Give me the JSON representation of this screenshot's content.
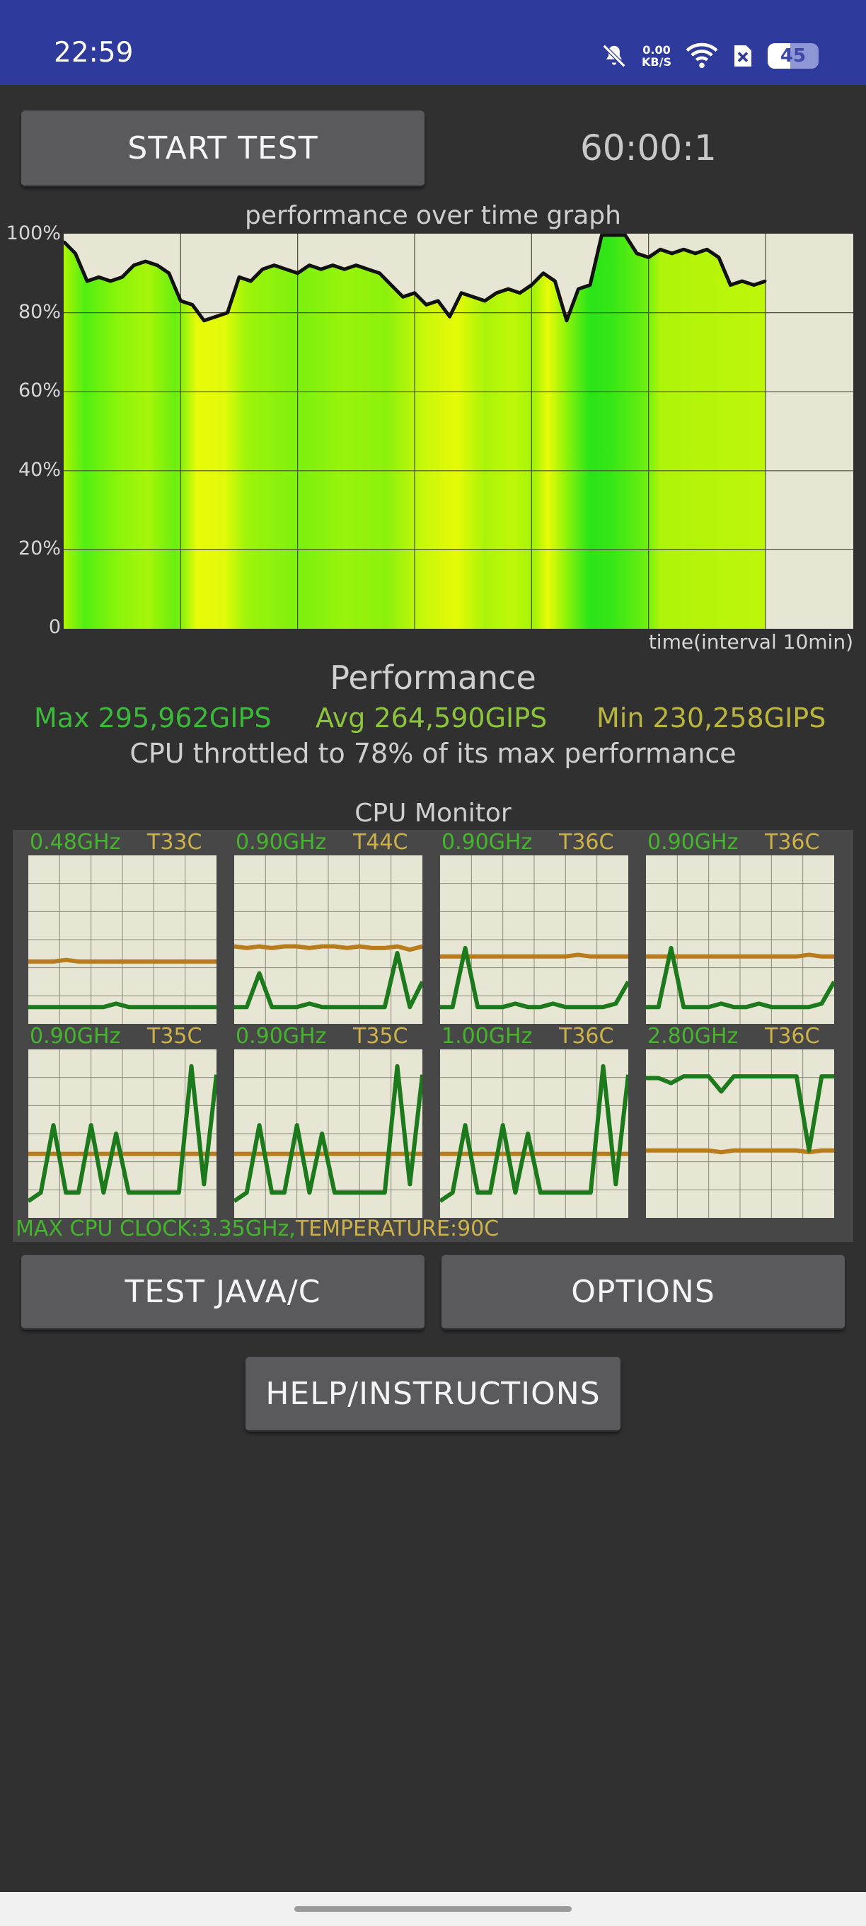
{
  "status_bar": {
    "time": "22:59",
    "net_speed_value": "0.00",
    "net_speed_unit": "KB/S",
    "battery": "45",
    "battery_level": 0.45,
    "icons": [
      "bell-muted-icon",
      "net-speed-icon",
      "wifi-icon",
      "sim-blocked-icon",
      "battery-icon"
    ]
  },
  "controls": {
    "start_label": "START TEST",
    "timer": "60:00:1"
  },
  "graph": {
    "title": "performance over time graph",
    "y_ticks": [
      "100%",
      "80%",
      "60%",
      "40%",
      "20%",
      "0"
    ],
    "x_label": "time(interval 10min)"
  },
  "chart_data": {
    "type": "area",
    "title": "performance over time graph",
    "xlabel": "time(interval 10min)",
    "ylabel": "",
    "ylim": [
      0,
      100
    ],
    "y_ticks": [
      0,
      20,
      40,
      60,
      80,
      100
    ],
    "grid": true,
    "x_range_minutes": [
      0,
      67.5
    ],
    "series": [
      {
        "x": [
          0,
          1,
          2,
          3,
          4,
          5,
          6,
          7,
          8,
          9,
          10,
          11,
          12,
          13,
          14,
          15,
          16,
          17,
          18,
          19,
          20,
          21,
          22,
          23,
          24,
          25,
          26,
          27,
          28,
          29,
          30,
          31,
          32,
          33,
          34,
          35,
          36,
          37,
          38,
          39,
          40,
          41,
          42,
          43,
          44,
          45,
          46,
          47,
          48,
          49,
          50,
          51,
          52,
          53,
          54,
          55,
          56,
          57,
          58,
          59,
          60
        ],
        "values": [
          98,
          95,
          88,
          89,
          88,
          89,
          92,
          93,
          92,
          90,
          83,
          82,
          78,
          79,
          80,
          89,
          88,
          91,
          92,
          91,
          90,
          92,
          91,
          92,
          91,
          92,
          91,
          90,
          87,
          84,
          85,
          82,
          83,
          79,
          85,
          84,
          83,
          85,
          86,
          85,
          87,
          90,
          88,
          78,
          86,
          87,
          101,
          101,
          100,
          95,
          94,
          96,
          95,
          96,
          95,
          96,
          94,
          87,
          88,
          87,
          88
        ]
      }
    ]
  },
  "performance": {
    "title": "Performance",
    "max": "Max 295,962GIPS",
    "avg": "Avg 264,590GIPS",
    "min": "Min 230,258GIPS",
    "throttle": "CPU throttled to 78% of its max performance"
  },
  "cpu_monitor": {
    "title": "CPU Monitor",
    "cores": [
      {
        "freq": "0.48GHz",
        "temp": "T33C",
        "freq_series": [
          10,
          10,
          10,
          10,
          10,
          10,
          10,
          12,
          10,
          10,
          10,
          10,
          10,
          10,
          10,
          10
        ],
        "temp_series": [
          37,
          37,
          37,
          38,
          37,
          37,
          37,
          37,
          37,
          37,
          37,
          37,
          37,
          37,
          37,
          37
        ]
      },
      {
        "freq": "0.90GHz",
        "temp": "T44C",
        "freq_series": [
          10,
          10,
          30,
          10,
          10,
          10,
          12,
          10,
          10,
          10,
          10,
          10,
          10,
          42,
          10,
          25
        ],
        "temp_series": [
          46,
          45,
          46,
          45,
          46,
          46,
          45,
          46,
          46,
          45,
          46,
          45,
          45,
          46,
          44,
          46
        ]
      },
      {
        "freq": "0.90GHz",
        "temp": "T36C",
        "freq_series": [
          10,
          10,
          45,
          10,
          10,
          10,
          12,
          10,
          10,
          12,
          10,
          10,
          10,
          10,
          12,
          25
        ],
        "temp_series": [
          40,
          40,
          40,
          40,
          40,
          40,
          40,
          40,
          40,
          40,
          40,
          41,
          40,
          40,
          40,
          40
        ]
      },
      {
        "freq": "0.90GHz",
        "temp": "T36C",
        "freq_series": [
          10,
          10,
          45,
          10,
          10,
          10,
          12,
          10,
          10,
          12,
          10,
          10,
          10,
          10,
          12,
          25
        ],
        "temp_series": [
          40,
          40,
          40,
          40,
          40,
          40,
          40,
          40,
          40,
          40,
          40,
          40,
          40,
          41,
          40,
          40
        ]
      },
      {
        "freq": "0.90GHz",
        "temp": "T35C",
        "freq_series": [
          10,
          15,
          55,
          15,
          15,
          55,
          15,
          50,
          15,
          15,
          15,
          15,
          15,
          90,
          20,
          85
        ],
        "temp_series": [
          38,
          38,
          38,
          38,
          38,
          38,
          38,
          38,
          38,
          38,
          38,
          38,
          38,
          38,
          38,
          38
        ]
      },
      {
        "freq": "0.90GHz",
        "temp": "T35C",
        "freq_series": [
          10,
          15,
          55,
          15,
          15,
          55,
          15,
          50,
          15,
          15,
          15,
          15,
          15,
          90,
          20,
          85
        ],
        "temp_series": [
          38,
          38,
          38,
          38,
          38,
          38,
          38,
          38,
          38,
          38,
          38,
          38,
          38,
          38,
          38,
          38
        ]
      },
      {
        "freq": "1.00GHz",
        "temp": "T36C",
        "freq_series": [
          10,
          15,
          55,
          15,
          15,
          55,
          15,
          50,
          15,
          15,
          15,
          15,
          15,
          90,
          20,
          85
        ],
        "temp_series": [
          38,
          38,
          38,
          38,
          38,
          38,
          38,
          38,
          38,
          38,
          38,
          38,
          38,
          38,
          38,
          38
        ]
      },
      {
        "freq": "2.80GHz",
        "temp": "T36C",
        "freq_series": [
          83,
          83,
          80,
          84,
          84,
          84,
          75,
          84,
          84,
          84,
          84,
          84,
          84,
          40,
          84,
          84
        ],
        "temp_series": [
          40,
          40,
          40,
          40,
          40,
          40,
          39,
          40,
          40,
          40,
          40,
          40,
          40,
          39,
          40,
          40
        ]
      }
    ],
    "footer_clock": "MAX CPU CLOCK:3.35GHz,",
    "footer_temp": "TEMPERATURE:90C",
    "colors": {
      "freq": "#1c7a1c",
      "temp": "#b87c1c",
      "freq_label": "#44b52c",
      "temp_label": "#cdb24a"
    }
  },
  "buttons": {
    "test_java_c": "TEST JAVA/C",
    "options": "OPTIONS",
    "help": "HELP/INSTRUCTIONS"
  },
  "colors": {
    "stat_max": "#3cb83a",
    "stat_avg": "#8cc43c",
    "stat_min": "#b9b53e",
    "statusbar": "#2e3b9c"
  }
}
